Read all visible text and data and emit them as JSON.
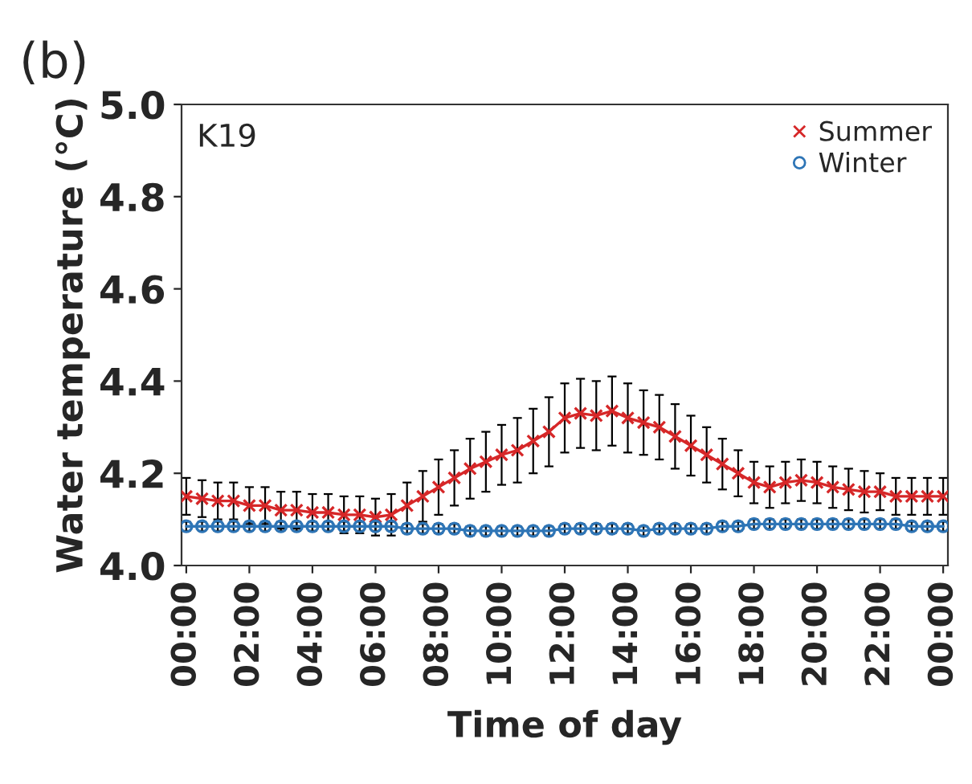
{
  "chart_data": {
    "type": "line",
    "xlabel": "Time of day",
    "ylabel": "Water temperature (°C)",
    "annotations": [
      "(b)",
      "K19"
    ],
    "x": [
      0,
      0.5,
      1,
      1.5,
      2,
      2.5,
      3,
      3.5,
      4,
      4.5,
      5,
      5.5,
      6,
      6.5,
      7,
      7.5,
      8,
      8.5,
      9,
      9.5,
      10,
      10.5,
      11,
      11.5,
      12,
      12.5,
      13,
      13.5,
      14,
      14.5,
      15,
      15.5,
      16,
      16.5,
      17,
      17.5,
      18,
      18.5,
      19,
      19.5,
      20,
      20.5,
      21,
      21.5,
      22,
      22.5,
      23,
      23.5,
      24
    ],
    "xlim": [
      -0.15,
      24.15
    ],
    "xticks": [
      {
        "value": 0,
        "label": "00:00"
      },
      {
        "value": 2,
        "label": "02:00"
      },
      {
        "value": 4,
        "label": "04:00"
      },
      {
        "value": 6,
        "label": "06:00"
      },
      {
        "value": 8,
        "label": "08:00"
      },
      {
        "value": 10,
        "label": "10:00"
      },
      {
        "value": 12,
        "label": "12:00"
      },
      {
        "value": 14,
        "label": "14:00"
      },
      {
        "value": 16,
        "label": "16:00"
      },
      {
        "value": 18,
        "label": "18:00"
      },
      {
        "value": 20,
        "label": "20:00"
      },
      {
        "value": 22,
        "label": "22:00"
      },
      {
        "value": 24,
        "label": "00:00"
      }
    ],
    "ylim": [
      4.0,
      5.0
    ],
    "yticks": [
      {
        "value": 4.0,
        "label": "4.0"
      },
      {
        "value": 4.2,
        "label": "4.2"
      },
      {
        "value": 4.4,
        "label": "4.4"
      },
      {
        "value": 4.6,
        "label": "4.6"
      },
      {
        "value": 4.8,
        "label": "4.8"
      },
      {
        "value": 5.0,
        "label": "5.0"
      }
    ],
    "grid": false,
    "legend": "top right",
    "series": [
      {
        "name": "Summer",
        "color": "#d62728",
        "marker": "cross",
        "values": [
          4.15,
          4.145,
          4.14,
          4.14,
          4.13,
          4.13,
          4.12,
          4.12,
          4.115,
          4.115,
          4.11,
          4.11,
          4.105,
          4.11,
          4.13,
          4.15,
          4.17,
          4.19,
          4.21,
          4.225,
          4.24,
          4.25,
          4.27,
          4.29,
          4.32,
          4.33,
          4.325,
          4.335,
          4.32,
          4.31,
          4.3,
          4.28,
          4.26,
          4.24,
          4.22,
          4.2,
          4.18,
          4.17,
          4.18,
          4.185,
          4.18,
          4.17,
          4.165,
          4.16,
          4.16,
          4.15,
          4.15,
          4.15,
          4.15
        ],
        "errors": [
          0.04,
          0.04,
          0.04,
          0.04,
          0.04,
          0.04,
          0.04,
          0.04,
          0.04,
          0.04,
          0.04,
          0.04,
          0.04,
          0.045,
          0.05,
          0.055,
          0.06,
          0.06,
          0.065,
          0.065,
          0.065,
          0.07,
          0.07,
          0.075,
          0.075,
          0.075,
          0.075,
          0.075,
          0.075,
          0.07,
          0.07,
          0.07,
          0.065,
          0.06,
          0.055,
          0.05,
          0.045,
          0.045,
          0.045,
          0.045,
          0.045,
          0.045,
          0.045,
          0.045,
          0.04,
          0.04,
          0.04,
          0.04,
          0.04
        ]
      },
      {
        "name": "Winter",
        "color": "#2e75b6",
        "marker": "circle",
        "values": [
          4.085,
          4.085,
          4.085,
          4.085,
          4.085,
          4.085,
          4.085,
          4.085,
          4.085,
          4.085,
          4.085,
          4.085,
          4.085,
          4.085,
          4.08,
          4.08,
          4.08,
          4.08,
          4.075,
          4.075,
          4.075,
          4.075,
          4.075,
          4.075,
          4.08,
          4.08,
          4.08,
          4.08,
          4.08,
          4.075,
          4.08,
          4.08,
          4.08,
          4.08,
          4.085,
          4.085,
          4.09,
          4.09,
          4.09,
          4.09,
          4.09,
          4.09,
          4.09,
          4.09,
          4.09,
          4.09,
          4.085,
          4.085,
          4.085
        ],
        "errors": [
          0.01,
          0.01,
          0.01,
          0.01,
          0.01,
          0.01,
          0.01,
          0.01,
          0.01,
          0.01,
          0.01,
          0.01,
          0.01,
          0.01,
          0.01,
          0.01,
          0.01,
          0.01,
          0.01,
          0.01,
          0.01,
          0.01,
          0.01,
          0.01,
          0.01,
          0.01,
          0.01,
          0.01,
          0.01,
          0.01,
          0.01,
          0.01,
          0.01,
          0.01,
          0.01,
          0.01,
          0.01,
          0.01,
          0.01,
          0.01,
          0.01,
          0.01,
          0.01,
          0.01,
          0.01,
          0.01,
          0.01,
          0.01,
          0.01
        ]
      }
    ]
  }
}
